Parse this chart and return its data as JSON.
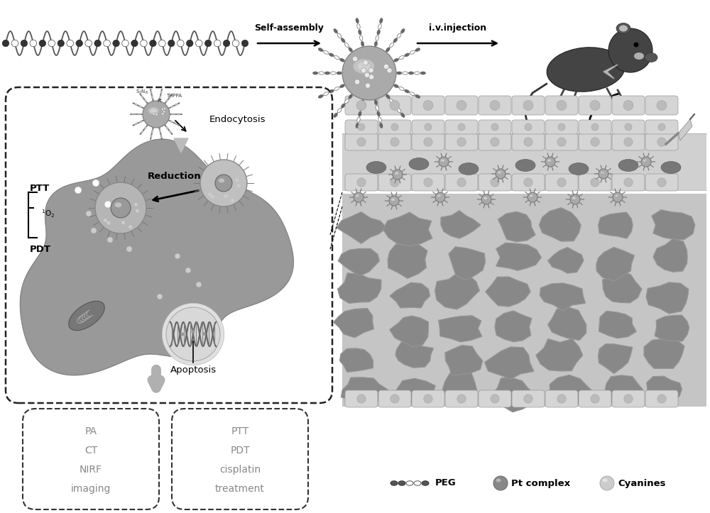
{
  "bg_color": "#ffffff",
  "self_assembly_label": "Self-assembly",
  "iv_injection_label": "i.v.injection",
  "endocytosis_label": "Endocytosis",
  "reduction_label": "Reduction",
  "ptt_label": "PTT",
  "pdt_label": "PDT",
  "o2_label": "$^1$O$_2$",
  "apoptosis_label": "Apoptosis",
  "box1_lines": [
    "PA",
    "CT",
    "NIRF",
    "imaging"
  ],
  "box2_lines": [
    "PTT",
    "PDT",
    "cisplatin",
    "treatment"
  ],
  "legend_peg": "PEG",
  "legend_pt": "Pt complex",
  "legend_cy": "Cyanines",
  "chain_color": "#555555",
  "nano_body_color": "#aaaaaa",
  "nano_dot_color": "#eeeeee",
  "tumor_color": "#999999",
  "endosome_outer_color": "#bbbbbb",
  "vessel_bg": "#d0d0d0",
  "cell_color": "#cccccc",
  "tissue_cell_color": "#888888",
  "text_gray": "#888888"
}
